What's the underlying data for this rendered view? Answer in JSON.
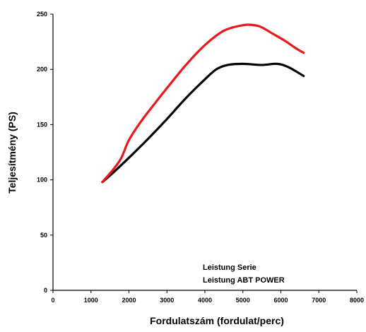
{
  "chart_data": {
    "type": "line",
    "title": "",
    "xlabel": "Fordulatszám (fordulat/perc)",
    "ylabel": "Teljesítmény (PS)",
    "xlim": [
      0,
      8000
    ],
    "ylim": [
      0,
      250
    ],
    "xticks": [
      0,
      1000,
      2000,
      3000,
      4000,
      5000,
      6000,
      7000,
      8000
    ],
    "yticks": [
      0,
      50,
      100,
      150,
      200,
      250
    ],
    "grid": false,
    "legend_position": "bottom-right",
    "legend_entries": [
      "Leistung Serie",
      "Leistung ABT POWER"
    ],
    "series": [
      {
        "name": "Leistung Serie",
        "color": "#000000",
        "x": [
          1300,
          1600,
          2000,
          2500,
          3000,
          3500,
          4000,
          4300,
          4600,
          5000,
          5500,
          5900,
          6200,
          6600
        ],
        "y": [
          98,
          107,
          120,
          137,
          155,
          174,
          191,
          200,
          204,
          205,
          204,
          205,
          202,
          194
        ]
      },
      {
        "name": "Leistung ABT POWER",
        "color": "#e8191c",
        "x": [
          1300,
          1600,
          1800,
          2000,
          2300,
          2700,
          3000,
          3500,
          4000,
          4500,
          5000,
          5300,
          5500,
          5800,
          6100,
          6400,
          6600
        ],
        "y": [
          98,
          110,
          120,
          136,
          152,
          170,
          183,
          204,
          222,
          235,
          240,
          240,
          238,
          232,
          226,
          219,
          215
        ]
      }
    ]
  }
}
